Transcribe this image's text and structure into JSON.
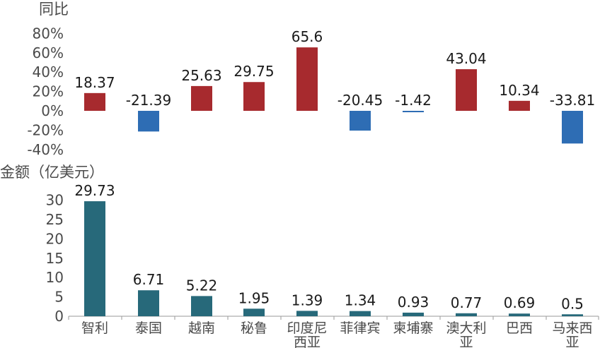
{
  "chart_data": [
    {
      "type": "bar",
      "ylabel": "同比",
      "categories": [
        "智利",
        "泰国",
        "越南",
        "秘鲁",
        "印度尼西亚",
        "菲律宾",
        "柬埔寨",
        "澳大利亚",
        "巴西",
        "马来西亚"
      ],
      "values": [
        18.37,
        -21.39,
        25.63,
        29.75,
        65.6,
        -20.45,
        -1.42,
        43.04,
        10.34,
        -33.81
      ],
      "value_labels": [
        "18.37",
        "-21.39",
        "25.63",
        "29.75",
        "65.6",
        "-20.45",
        "-1.42",
        "43.04",
        "10.34",
        "-33.81"
      ],
      "ylim": [
        -40,
        80
      ],
      "yticks": [
        "80%",
        "60%",
        "40%",
        "20%",
        "0%",
        "-20%",
        "-40%"
      ],
      "ytick_values": [
        80,
        60,
        40,
        20,
        0,
        -20,
        -40
      ],
      "colors": {
        "positive": "#a72a2e",
        "negative": "#2e6db4"
      },
      "grid": false
    },
    {
      "type": "bar",
      "ylabel": "金额（亿美元）",
      "categories": [
        "智利",
        "泰国",
        "越南",
        "秘鲁",
        "印度尼西亚",
        "菲律宾",
        "柬埔寨",
        "澳大利亚",
        "巴西",
        "马来西亚"
      ],
      "category_lines": [
        [
          "智利"
        ],
        [
          "泰国"
        ],
        [
          "越南"
        ],
        [
          "秘鲁"
        ],
        [
          "印度尼",
          "西亚"
        ],
        [
          "菲律宾"
        ],
        [
          "柬埔寨"
        ],
        [
          "澳大利",
          "亚"
        ],
        [
          "巴西"
        ],
        [
          "马来西",
          "亚"
        ]
      ],
      "values": [
        29.73,
        6.71,
        5.22,
        1.95,
        1.39,
        1.34,
        0.93,
        0.77,
        0.69,
        0.5
      ],
      "value_labels": [
        "29.73",
        "6.71",
        "5.22",
        "1.95",
        "1.39",
        "1.34",
        "0.93",
        "0.77",
        "0.69",
        "0.5"
      ],
      "ylim": [
        0,
        30
      ],
      "yticks": [
        "30",
        "25",
        "20",
        "15",
        "10",
        "5",
        "0"
      ],
      "ytick_values": [
        30,
        25,
        20,
        15,
        10,
        5,
        0
      ],
      "colors": {
        "bar": "#27697a"
      },
      "grid": false
    }
  ]
}
